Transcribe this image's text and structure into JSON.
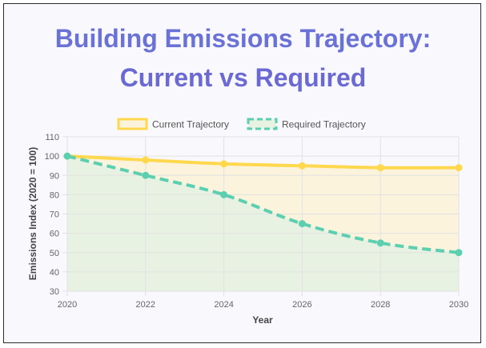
{
  "title_lines": [
    "Building Emissions Trajectory:",
    "Current vs Required"
  ],
  "colors": {
    "title": "#6a6ad2",
    "current_line": "#ffd84d",
    "current_fill": "#fbf3dc",
    "required_line": "#5ccfb0",
    "required_fill": "#e8f2e2",
    "grid": "#e2e2e2",
    "background": "#f8f8fd"
  },
  "chart_data": {
    "type": "line",
    "title": "Building Emissions Trajectory: Current vs Required",
    "xlabel": "Year",
    "ylabel": "Emissions Index (2020 = 100)",
    "x": [
      "2020",
      "2022",
      "2024",
      "2026",
      "2028",
      "2030"
    ],
    "xticks": [
      "2020",
      "2022",
      "2024",
      "2026",
      "2028",
      "2030"
    ],
    "yticks": [
      "30",
      "40",
      "50",
      "60",
      "70",
      "80",
      "90",
      "100",
      "110"
    ],
    "ylim": [
      30,
      110
    ],
    "grid": true,
    "legend_position": "top",
    "series": [
      {
        "name": "Current Trajectory",
        "values": [
          100,
          98,
          96,
          95,
          94,
          94
        ],
        "line_style": "solid",
        "filled": true
      },
      {
        "name": "Required Trajectory",
        "values": [
          100,
          90,
          80,
          65,
          55,
          50
        ],
        "line_style": "dashed",
        "filled": true
      }
    ]
  }
}
